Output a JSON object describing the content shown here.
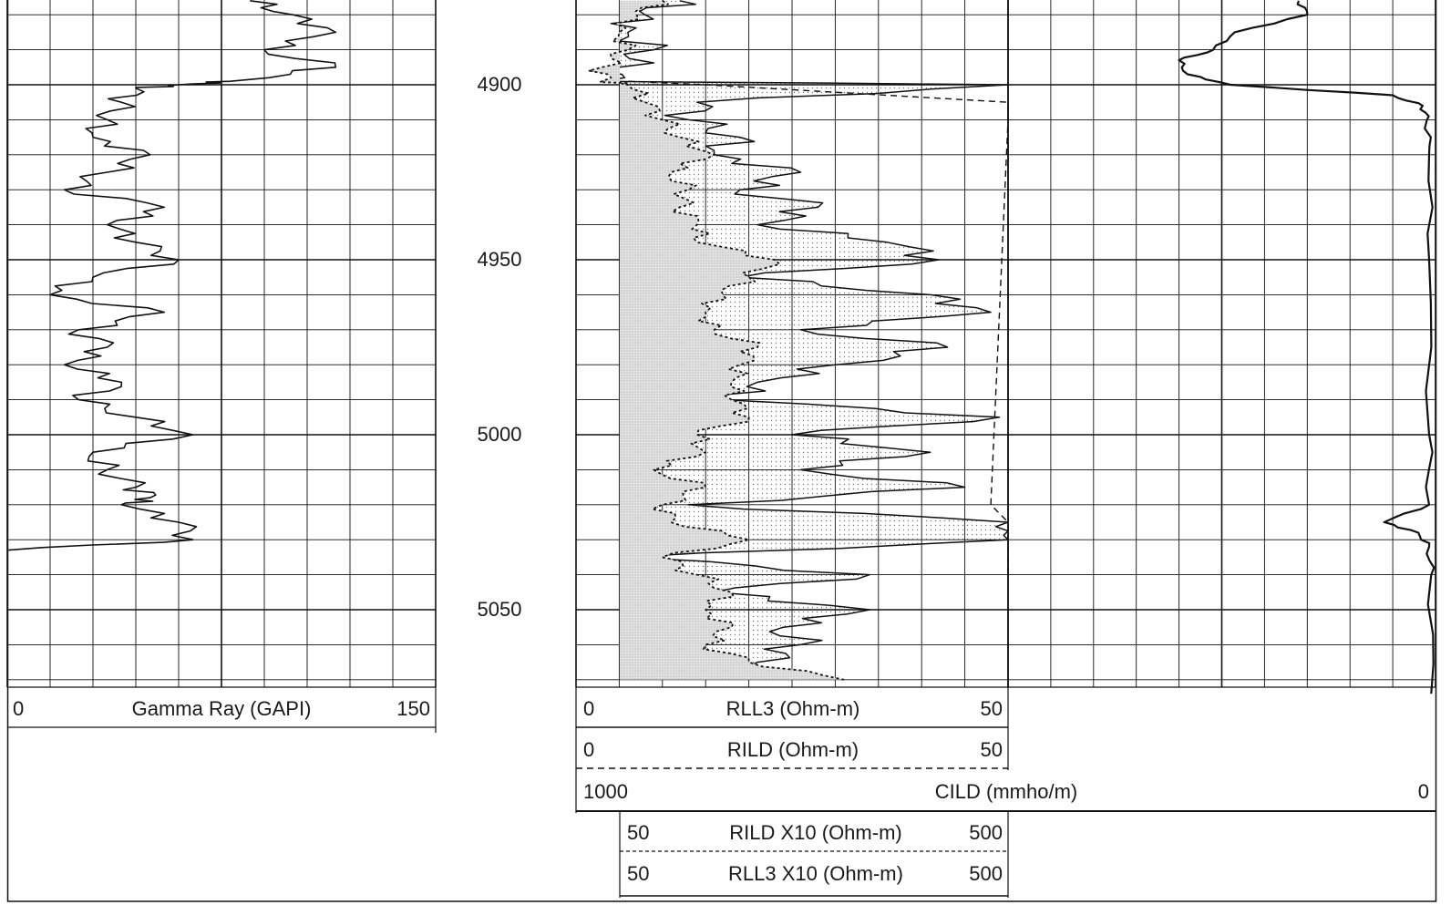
{
  "chart_data": {
    "type": "line",
    "title": "",
    "depth_axis": {
      "ticks": [
        4900,
        4950,
        5000,
        5050
      ],
      "range": [
        4876,
        5074
      ],
      "orientation": "depth increases downward"
    },
    "tracks": [
      {
        "id": "gr",
        "headers": [
          {
            "left": "0",
            "name": "Gamma Ray (GAPI)",
            "right": "150",
            "line": "solid"
          }
        ]
      },
      {
        "id": "res",
        "headers": [
          {
            "left": "0",
            "name": "RLL3 (Ohm-m)",
            "right": "50",
            "line": "solid"
          },
          {
            "left": "0",
            "name": "RILD (Ohm-m)",
            "right": "50",
            "line": "dashed"
          },
          {
            "left": "50",
            "name": "RILD X10 (Ohm-m)",
            "right": "500",
            "line": "dashed"
          },
          {
            "left": "50",
            "name": "RLL3 X10 (Ohm-m)",
            "right": "500",
            "line": "solid"
          }
        ]
      },
      {
        "id": "cond",
        "headers": [
          {
            "left": "1000",
            "name": "CILD (mmho/m)",
            "right": "0",
            "line": "solid"
          }
        ]
      }
    ],
    "series": [
      {
        "track": "gr",
        "unit": "GAPI",
        "depth": [
          4876,
          4880,
          4885,
          4890,
          4895,
          4899,
          4900,
          4901,
          4905,
          4910,
          4915,
          4920,
          4925,
          4930,
          4935,
          4940,
          4945,
          4950,
          4955,
          4960,
          4965,
          4970,
          4975,
          4980,
          4985,
          4990,
          4995,
          5000,
          5005,
          5010,
          5015,
          5018,
          5020,
          5025,
          5030,
          5033,
          5035,
          5040,
          5045,
          5050,
          5055,
          5060,
          5065,
          5070,
          5074
        ],
        "values": [
          85,
          100,
          115,
          90,
          115,
          78,
          60,
          45,
          40,
          35,
          30,
          50,
          35,
          20,
          55,
          35,
          45,
          60,
          30,
          15,
          55,
          25,
          35,
          20,
          40,
          25,
          45,
          65,
          30,
          35,
          45,
          50,
          40,
          60,
          65,
          0,
          null,
          null,
          null,
          null,
          null,
          null,
          null,
          null,
          null
        ]
      },
      {
        "track": "res",
        "name": "RLL3 (Ohm-m)",
        "unit": "Ohm-m",
        "depth": [
          4876,
          4880,
          4885,
          4890,
          4895,
          4899,
          4900,
          4905,
          4910,
          4915,
          4920,
          4925,
          4930,
          4935,
          4940,
          4945,
          4950,
          4955,
          4960,
          4965,
          4970,
          4975,
          4980,
          4985,
          4990,
          4995,
          5000,
          5005,
          5010,
          5015,
          5020,
          5025,
          5030,
          5035,
          5040,
          5045,
          5050,
          5055,
          5060,
          5065,
          5070
        ],
        "values": [
          12,
          8,
          6,
          9,
          5,
          3,
          50,
          14,
          13,
          19,
          16,
          26,
          19,
          28,
          21,
          36,
          42,
          19,
          41,
          48,
          26,
          43,
          30,
          21,
          17,
          49,
          25,
          41,
          26,
          45,
          13,
          50,
          50,
          6,
          34,
          16,
          34,
          24,
          26,
          21,
          26
        ]
      },
      {
        "track": "res",
        "name": "RILD (Ohm-m)",
        "unit": "Ohm-m",
        "depth": [
          4876,
          4880,
          4885,
          4890,
          4895,
          4899,
          4900,
          4905,
          4910,
          4915,
          4920,
          4925,
          4930,
          4935,
          4940,
          4945,
          4950,
          4955,
          4960,
          4965,
          4970,
          4975,
          4980,
          4985,
          4990,
          4995,
          5000,
          5005,
          5010,
          5015,
          5020,
          5025,
          5030,
          5035,
          5040,
          5045,
          5050,
          5055,
          5060,
          5065,
          5070
        ],
        "values": [
          10,
          7,
          5,
          6,
          3,
          3,
          6,
          8,
          10,
          12,
          16,
          11,
          13,
          12,
          14,
          14,
          23,
          20,
          17,
          15,
          16,
          21,
          19,
          18,
          18,
          20,
          14,
          15,
          9,
          15,
          10,
          11,
          20,
          10,
          14,
          18,
          15,
          18,
          15,
          20,
          31
        ]
      },
      {
        "track": "res",
        "name": "RILD X10 (Ohm-m)",
        "unit": "Ohm-m",
        "depth": [
          4899,
          4900,
          4905,
          4910,
          5020,
          5025,
          5030,
          5035,
          5040
        ],
        "values": [
          60,
          150,
          500,
          500,
          480,
          500,
          500,
          500,
          500
        ]
      },
      {
        "track": "cond",
        "name": "CILD (mmho/m)",
        "unit": "mmho/m",
        "depth": [
          4876,
          4880,
          4885,
          4890,
          4893,
          4897,
          4900,
          4903,
          4906,
          4910,
          4920,
          4950,
          5000,
          5020,
          5025,
          5028,
          5032,
          5040,
          5074
        ],
        "values": [
          320,
          300,
          470,
          520,
          600,
          580,
          480,
          100,
          30,
          20,
          15,
          15,
          15,
          15,
          120,
          40,
          15,
          10,
          10
        ]
      }
    ],
    "grid": true,
    "legend": "bottom"
  }
}
